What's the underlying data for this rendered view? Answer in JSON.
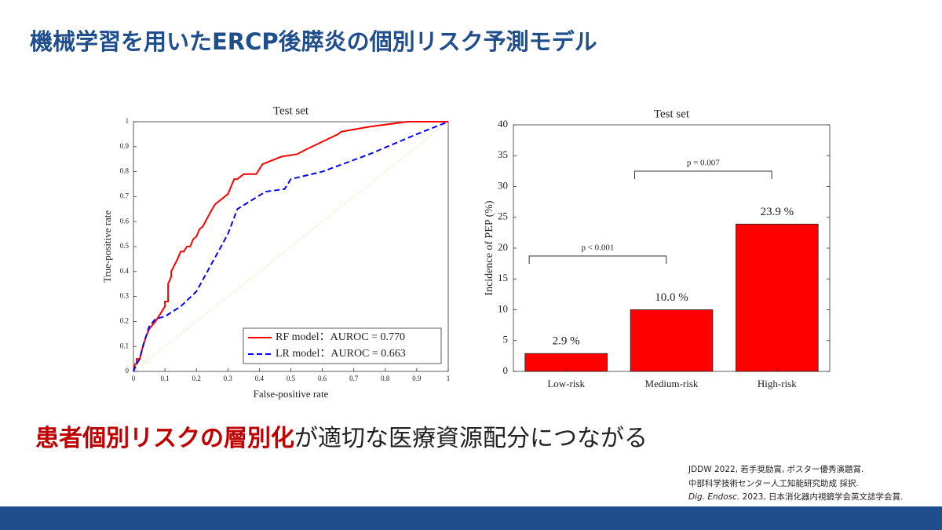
{
  "title": "機械学習を用いたERCP後膵炎の個別リスク予測モデル",
  "conclusion": {
    "highlight": "患者個別リスクの層別化",
    "rest": "が適切な医療資源配分につながる"
  },
  "references": [
    {
      "text": "JDDW 2022, 若手奨励賞, ポスター優秀演題賞."
    },
    {
      "text": "中部科学技術センター人工知能研究助成 採択."
    },
    {
      "journal": "Dig. Endosc.",
      "text": " 2023, 日本消化器内視鏡学会英文誌学会賞."
    }
  ],
  "chart_data": [
    {
      "type": "line",
      "title": "Test set",
      "xlabel": "False-positive rate",
      "ylabel": "True-positive rate",
      "xlim": [
        0,
        1
      ],
      "ylim": [
        0,
        1
      ],
      "xticks": [
        0,
        0.1,
        0.2,
        0.3,
        0.4,
        0.5,
        0.6,
        0.7,
        0.8,
        0.9,
        1
      ],
      "yticks": [
        0,
        0.1,
        0.2,
        0.3,
        0.4,
        0.5,
        0.6,
        0.7,
        0.8,
        0.9,
        1
      ],
      "legend": "lower right",
      "series": [
        {
          "name": "RF model：AUROC = 0.770",
          "color": "#ff0000",
          "dash": "solid",
          "x": [
            0,
            0.005,
            0.01,
            0.01,
            0.02,
            0.03,
            0.04,
            0.05,
            0.07,
            0.08,
            0.1,
            0.1,
            0.11,
            0.11,
            0.12,
            0.12,
            0.14,
            0.15,
            0.16,
            0.17,
            0.18,
            0.19,
            0.2,
            0.21,
            0.22,
            0.25,
            0.26,
            0.3,
            0.31,
            0.32,
            0.33,
            0.34,
            0.35,
            0.39,
            0.4,
            0.41,
            0.47,
            0.52,
            0.55,
            0.65,
            0.66,
            0.75,
            0.87,
            1
          ],
          "values": [
            0,
            0.03,
            0.03,
            0.05,
            0.05,
            0.1,
            0.14,
            0.17,
            0.2,
            0.22,
            0.26,
            0.28,
            0.28,
            0.35,
            0.38,
            0.4,
            0.45,
            0.48,
            0.48,
            0.5,
            0.5,
            0.53,
            0.54,
            0.57,
            0.58,
            0.65,
            0.67,
            0.71,
            0.74,
            0.77,
            0.77,
            0.78,
            0.79,
            0.79,
            0.81,
            0.83,
            0.86,
            0.87,
            0.89,
            0.95,
            0.96,
            0.98,
            1,
            1
          ]
        },
        {
          "name": "LR model：AUROC = 0.663",
          "color": "#0000ff",
          "dash": "dashed",
          "x": [
            0,
            0.01,
            0.02,
            0.03,
            0.04,
            0.05,
            0.07,
            0.1,
            0.15,
            0.2,
            0.3,
            0.33,
            0.42,
            0.48,
            0.5,
            0.6,
            0.75,
            0.9,
            1
          ],
          "values": [
            0,
            0.03,
            0.05,
            0.1,
            0.14,
            0.18,
            0.21,
            0.22,
            0.26,
            0.32,
            0.55,
            0.65,
            0.72,
            0.73,
            0.77,
            0.8,
            0.87,
            0.95,
            1
          ]
        }
      ]
    },
    {
      "type": "bar",
      "title": "Test set",
      "ylabel": "Incidence of PEP (%)",
      "categories": [
        "Low-risk",
        "Medium-risk",
        "High-risk"
      ],
      "values": [
        2.9,
        10,
        23.9
      ],
      "value_labels": [
        "2.9 %",
        "10.0 %",
        "23.9 %"
      ],
      "color": "#ff0000",
      "ylim": [
        0,
        40
      ],
      "yticks": [
        0,
        5,
        10,
        15,
        20,
        25,
        30,
        35,
        40
      ],
      "annotations": [
        "p < 0.001",
        "p = 0.007"
      ]
    }
  ]
}
